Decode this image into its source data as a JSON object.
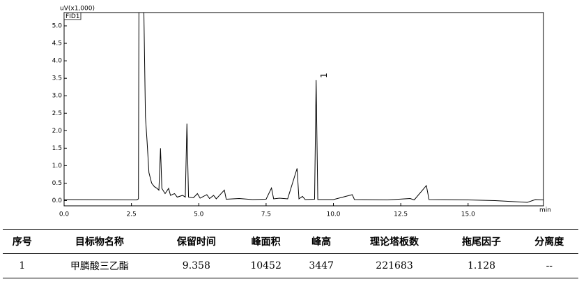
{
  "chart_data": {
    "type": "line",
    "y_label": "uV(x1,000)",
    "x_label": "min",
    "detector": "FID1",
    "annotation": {
      "text": "1",
      "x": 9.358
    },
    "color": "#000000",
    "xlim": [
      0,
      17.8
    ],
    "ylim": [
      -0.15,
      5.38
    ],
    "xticks": [
      {
        "value": 0,
        "label": "0.0"
      },
      2.5,
      {
        "value": 5,
        "label": "5.0"
      },
      7.5,
      {
        "value": 10,
        "label": "10.0"
      },
      12.5,
      {
        "value": 15,
        "label": "15.0"
      }
    ],
    "yticks": [
      {
        "value": 0,
        "label": "0.0"
      },
      0.5,
      {
        "value": 1,
        "label": "1.0"
      },
      1.5,
      {
        "value": 2,
        "label": "2.0"
      },
      2.5,
      {
        "value": 3,
        "label": "3.0"
      },
      3.5,
      {
        "value": 4,
        "label": "4.0"
      },
      4.5,
      {
        "value": 5,
        "label": "5.0"
      }
    ],
    "x": [
      0,
      2.7,
      2.76,
      2.78,
      2.95,
      3.02,
      3.08,
      3.15,
      3.25,
      3.35,
      3.45,
      3.52,
      3.58,
      3.63,
      3.75,
      3.88,
      3.95,
      4.1,
      4.2,
      4.4,
      4.5,
      4.56,
      4.62,
      4.8,
      4.95,
      5.05,
      5.3,
      5.4,
      5.55,
      5.65,
      5.95,
      6.02,
      6.5,
      7.0,
      7.5,
      7.7,
      7.78,
      8.0,
      8.3,
      8.65,
      8.72,
      8.85,
      8.95,
      9.3,
      9.358,
      9.42,
      10.0,
      10.7,
      10.78,
      12.0,
      12.85,
      13.0,
      13.45,
      13.55,
      15.0,
      16.0,
      17.2,
      17.5,
      17.8
    ],
    "values": [
      0.03,
      0.02,
      0.05,
      6.0,
      6.0,
      2.4,
      1.7,
      0.8,
      0.5,
      0.4,
      0.35,
      0.3,
      1.5,
      0.35,
      0.2,
      0.35,
      0.15,
      0.2,
      0.1,
      0.15,
      0.1,
      2.2,
      0.1,
      0.08,
      0.2,
      0.07,
      0.17,
      0.06,
      0.15,
      0.05,
      0.3,
      0.04,
      0.06,
      0.03,
      0.04,
      0.36,
      0.05,
      0.07,
      0.05,
      0.92,
      0.05,
      0.12,
      0.03,
      0.04,
      3.447,
      0.03,
      0.03,
      0.17,
      0.03,
      0.02,
      0.06,
      0.02,
      0.43,
      0.03,
      0.02,
      0.0,
      -0.05,
      0.03,
      0.02
    ]
  },
  "table": {
    "headers": [
      "序号",
      "目标物名称",
      "保留时间",
      "峰面积",
      "峰高",
      "理论塔板数",
      "拖尾因子",
      "分离度"
    ],
    "rows": [
      [
        "1",
        "甲膦酸三乙酯",
        "9.358",
        "10452",
        "3447",
        "221683",
        "1.128",
        "--"
      ]
    ]
  }
}
